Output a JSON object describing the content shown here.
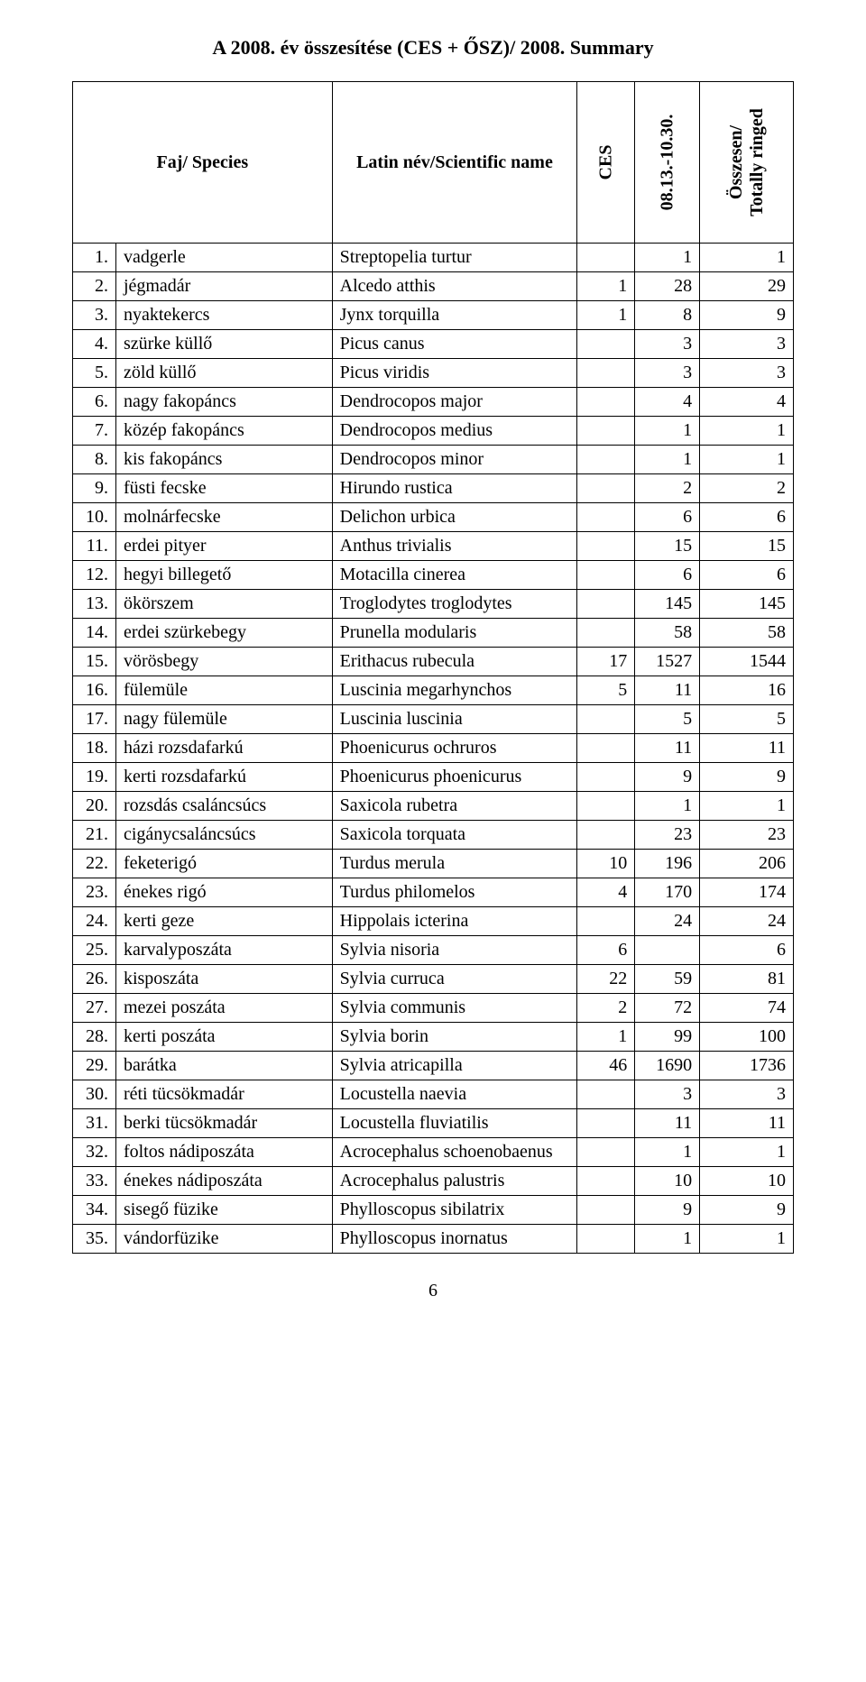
{
  "title": "A 2008. év összesítése (CES + ŐSZ)/ 2008. Summary",
  "page_number": "6",
  "columns": {
    "species": "Faj/ Species",
    "latin": "Latin név/Scientific name",
    "ces": "CES",
    "date": "08.13.-10.30.",
    "total": "Összesen/\nTotally ringed"
  },
  "rows": [
    {
      "n": "1.",
      "name": "vadgerle",
      "latin": "Streptopelia turtur",
      "ces": "",
      "date": "1",
      "total": "1"
    },
    {
      "n": "2.",
      "name": "jégmadár",
      "latin": "Alcedo atthis",
      "ces": "1",
      "date": "28",
      "total": "29"
    },
    {
      "n": "3.",
      "name": "nyaktekercs",
      "latin": "Jynx torquilla",
      "ces": "1",
      "date": "8",
      "total": "9"
    },
    {
      "n": "4.",
      "name": "szürke küllő",
      "latin": "Picus canus",
      "ces": "",
      "date": "3",
      "total": "3"
    },
    {
      "n": "5.",
      "name": "zöld küllő",
      "latin": "Picus viridis",
      "ces": "",
      "date": "3",
      "total": "3"
    },
    {
      "n": "6.",
      "name": "nagy fakopáncs",
      "latin": "Dendrocopos major",
      "ces": "",
      "date": "4",
      "total": "4"
    },
    {
      "n": "7.",
      "name": "közép fakopáncs",
      "latin": "Dendrocopos medius",
      "ces": "",
      "date": "1",
      "total": "1"
    },
    {
      "n": "8.",
      "name": "kis fakopáncs",
      "latin": "Dendrocopos minor",
      "ces": "",
      "date": "1",
      "total": "1"
    },
    {
      "n": "9.",
      "name": "füsti fecske",
      "latin": "Hirundo rustica",
      "ces": "",
      "date": "2",
      "total": "2"
    },
    {
      "n": "10.",
      "name": "molnárfecske",
      "latin": "Delichon urbica",
      "ces": "",
      "date": "6",
      "total": "6"
    },
    {
      "n": "11.",
      "name": "erdei pityer",
      "latin": "Anthus trivialis",
      "ces": "",
      "date": "15",
      "total": "15"
    },
    {
      "n": "12.",
      "name": "hegyi billegető",
      "latin": "Motacilla cinerea",
      "ces": "",
      "date": "6",
      "total": "6"
    },
    {
      "n": "13.",
      "name": "ökörszem",
      "latin": "Troglodytes troglodytes",
      "ces": "",
      "date": "145",
      "total": "145"
    },
    {
      "n": "14.",
      "name": "erdei szürkebegy",
      "latin": "Prunella modularis",
      "ces": "",
      "date": "58",
      "total": "58"
    },
    {
      "n": "15.",
      "name": "vörösbegy",
      "latin": "Erithacus rubecula",
      "ces": "17",
      "date": "1527",
      "total": "1544"
    },
    {
      "n": "16.",
      "name": "fülemüle",
      "latin": "Luscinia megarhynchos",
      "ces": "5",
      "date": "11",
      "total": "16"
    },
    {
      "n": "17.",
      "name": "nagy fülemüle",
      "latin": "Luscinia luscinia",
      "ces": "",
      "date": "5",
      "total": "5"
    },
    {
      "n": "18.",
      "name": "házi rozsdafarkú",
      "latin": "Phoenicurus ochruros",
      "ces": "",
      "date": "11",
      "total": "11"
    },
    {
      "n": "19.",
      "name": "kerti rozsdafarkú",
      "latin": "Phoenicurus phoenicurus",
      "ces": "",
      "date": "9",
      "total": "9"
    },
    {
      "n": "20.",
      "name": "rozsdás csaláncsúcs",
      "latin": "Saxicola rubetra",
      "ces": "",
      "date": "1",
      "total": "1"
    },
    {
      "n": "21.",
      "name": "cigánycsaláncsúcs",
      "latin": "Saxicola torquata",
      "ces": "",
      "date": "23",
      "total": "23"
    },
    {
      "n": "22.",
      "name": "feketerigó",
      "latin": "Turdus merula",
      "ces": "10",
      "date": "196",
      "total": "206"
    },
    {
      "n": "23.",
      "name": "énekes rigó",
      "latin": "Turdus philomelos",
      "ces": "4",
      "date": "170",
      "total": "174"
    },
    {
      "n": "24.",
      "name": "kerti geze",
      "latin": "Hippolais icterina",
      "ces": "",
      "date": "24",
      "total": "24"
    },
    {
      "n": "25.",
      "name": "karvalyposzáta",
      "latin": "Sylvia nisoria",
      "ces": "6",
      "date": "",
      "total": "6"
    },
    {
      "n": "26.",
      "name": "kisposzáta",
      "latin": "Sylvia curruca",
      "ces": "22",
      "date": "59",
      "total": "81"
    },
    {
      "n": "27.",
      "name": "mezei poszáta",
      "latin": "Sylvia communis",
      "ces": "2",
      "date": "72",
      "total": "74"
    },
    {
      "n": "28.",
      "name": "kerti poszáta",
      "latin": "Sylvia borin",
      "ces": "1",
      "date": "99",
      "total": "100"
    },
    {
      "n": "29.",
      "name": "barátka",
      "latin": "Sylvia atricapilla",
      "ces": "46",
      "date": "1690",
      "total": "1736"
    },
    {
      "n": "30.",
      "name": "réti tücsökmadár",
      "latin": "Locustella naevia",
      "ces": "",
      "date": "3",
      "total": "3"
    },
    {
      "n": "31.",
      "name": "berki tücsökmadár",
      "latin": "Locustella fluviatilis",
      "ces": "",
      "date": "11",
      "total": "11"
    },
    {
      "n": "32.",
      "name": "foltos nádiposzáta",
      "latin": "Acrocephalus schoenobaenus",
      "ces": "",
      "date": "1",
      "total": "1"
    },
    {
      "n": "33.",
      "name": "énekes nádiposzáta",
      "latin": "Acrocephalus palustris",
      "ces": "",
      "date": "10",
      "total": "10"
    },
    {
      "n": "34.",
      "name": "sisegő füzike",
      "latin": "Phylloscopus sibilatrix",
      "ces": "",
      "date": "9",
      "total": "9"
    },
    {
      "n": "35.",
      "name": "vándorfüzike",
      "latin": "Phylloscopus inornatus",
      "ces": "",
      "date": "1",
      "total": "1"
    }
  ]
}
